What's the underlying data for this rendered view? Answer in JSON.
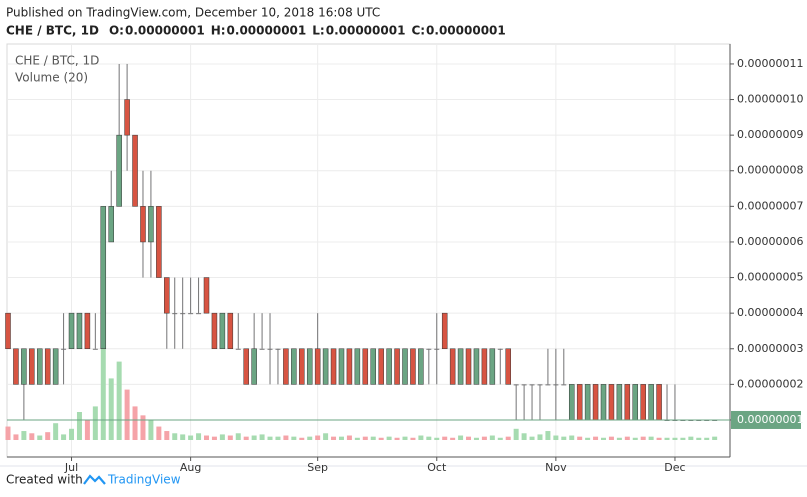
{
  "header": {
    "published": "Published on TradingView.com, December 10, 2018 16:08 UTC",
    "ohlc": [
      {
        "label": "O:",
        "value": "0.00000001"
      },
      {
        "label": "H:",
        "value": "0.00000001"
      },
      {
        "label": "L:",
        "value": "0.00000001"
      },
      {
        "label": "C:",
        "value": "0.00000001"
      }
    ]
  },
  "footer": {
    "created_with": "Created with",
    "brand": "TradingView"
  },
  "chart_data": {
    "type": "candlestick",
    "name": "CHE / BTC, 1D",
    "categories": [
      null,
      null,
      null,
      null,
      null,
      null,
      null,
      null,
      "Jul",
      null,
      null,
      null,
      null,
      null,
      null,
      null,
      null,
      null,
      null,
      null,
      null,
      null,
      null,
      "Aug",
      null,
      null,
      null,
      null,
      null,
      null,
      null,
      null,
      null,
      null,
      null,
      null,
      null,
      null,
      null,
      "Sep",
      null,
      null,
      null,
      null,
      null,
      null,
      null,
      null,
      null,
      null,
      null,
      null,
      null,
      null,
      "Oct",
      null,
      null,
      null,
      null,
      null,
      null,
      null,
      null,
      null,
      null,
      null,
      null,
      null,
      null,
      "Nov",
      null,
      null,
      null,
      null,
      null,
      null,
      null,
      null,
      null,
      null,
      null,
      null,
      null,
      null,
      "Dec",
      null,
      null,
      null,
      null,
      null
    ],
    "open": [
      4e-08,
      3e-08,
      2e-08,
      3e-08,
      2e-08,
      3e-08,
      2e-08,
      3e-08,
      3e-08,
      3e-08,
      4e-08,
      3e-08,
      3e-08,
      6e-08,
      7e-08,
      1e-07,
      9e-08,
      7e-08,
      6e-08,
      7e-08,
      5e-08,
      4e-08,
      4e-08,
      4e-08,
      4e-08,
      5e-08,
      4e-08,
      3e-08,
      4e-08,
      3e-08,
      3e-08,
      2e-08,
      3e-08,
      3e-08,
      3e-08,
      3e-08,
      2e-08,
      3e-08,
      2e-08,
      3e-08,
      2e-08,
      3e-08,
      2e-08,
      3e-08,
      2e-08,
      3e-08,
      2e-08,
      3e-08,
      2e-08,
      3e-08,
      2e-08,
      3e-08,
      2e-08,
      3e-08,
      3e-08,
      4e-08,
      3e-08,
      2e-08,
      3e-08,
      2e-08,
      3e-08,
      2e-08,
      3e-08,
      3e-08,
      2e-08,
      2e-08,
      2e-08,
      2e-08,
      2e-08,
      2e-08,
      2e-08,
      1e-08,
      2e-08,
      1e-08,
      2e-08,
      1e-08,
      2e-08,
      1e-08,
      2e-08,
      1e-08,
      2e-08,
      1e-08,
      2e-08,
      1e-08,
      1e-08,
      1e-08,
      1e-08,
      1e-08,
      1e-08,
      1e-08
    ],
    "high": [
      4e-08,
      3e-08,
      3e-08,
      3e-08,
      3e-08,
      3e-08,
      3e-08,
      4e-08,
      4e-08,
      4e-08,
      4e-08,
      4e-08,
      7e-08,
      8e-08,
      1.1e-07,
      1.1e-07,
      9e-08,
      8e-08,
      8e-08,
      7e-08,
      5e-08,
      5e-08,
      5e-08,
      5e-08,
      5e-08,
      5e-08,
      4e-08,
      4e-08,
      4e-08,
      4e-08,
      3e-08,
      4e-08,
      4e-08,
      4e-08,
      3e-08,
      3e-08,
      3e-08,
      3e-08,
      3e-08,
      4e-08,
      3e-08,
      3e-08,
      3e-08,
      3e-08,
      3e-08,
      3e-08,
      3e-08,
      3e-08,
      3e-08,
      3e-08,
      3e-08,
      3e-08,
      3e-08,
      3e-08,
      4e-08,
      4e-08,
      3e-08,
      3e-08,
      3e-08,
      3e-08,
      3e-08,
      3e-08,
      3e-08,
      3e-08,
      2e-08,
      2e-08,
      2e-08,
      2e-08,
      3e-08,
      3e-08,
      3e-08,
      2e-08,
      2e-08,
      2e-08,
      2e-08,
      2e-08,
      2e-08,
      2e-08,
      2e-08,
      2e-08,
      2e-08,
      2e-08,
      2e-08,
      2e-08,
      2e-08,
      1e-08,
      1e-08,
      1e-08,
      1e-08,
      1e-08
    ],
    "low": [
      3e-08,
      2e-08,
      1e-08,
      2e-08,
      2e-08,
      2e-08,
      2e-08,
      2e-08,
      3e-08,
      3e-08,
      3e-08,
      3e-08,
      3e-08,
      6e-08,
      7e-08,
      8e-08,
      7e-08,
      5e-08,
      5e-08,
      5e-08,
      3e-08,
      3e-08,
      3e-08,
      4e-08,
      4e-08,
      4e-08,
      3e-08,
      3e-08,
      3e-08,
      3e-08,
      2e-08,
      2e-08,
      3e-08,
      2e-08,
      2e-08,
      2e-08,
      2e-08,
      2e-08,
      2e-08,
      2e-08,
      2e-08,
      2e-08,
      2e-08,
      2e-08,
      2e-08,
      2e-08,
      2e-08,
      2e-08,
      2e-08,
      2e-08,
      2e-08,
      2e-08,
      2e-08,
      2e-08,
      2e-08,
      3e-08,
      2e-08,
      2e-08,
      2e-08,
      2e-08,
      2e-08,
      2e-08,
      2e-08,
      2e-08,
      1e-08,
      1e-08,
      1e-08,
      1e-08,
      2e-08,
      1e-08,
      2e-08,
      1e-08,
      1e-08,
      1e-08,
      1e-08,
      1e-08,
      1e-08,
      1e-08,
      1e-08,
      1e-08,
      1e-08,
      1e-08,
      1e-08,
      1e-08,
      1e-08,
      1e-08,
      1e-08,
      1e-08,
      1e-08,
      1e-08
    ],
    "close": [
      3e-08,
      2e-08,
      3e-08,
      2e-08,
      3e-08,
      2e-08,
      3e-08,
      3e-08,
      4e-08,
      4e-08,
      3e-08,
      3e-08,
      7e-08,
      7e-08,
      9e-08,
      9e-08,
      7e-08,
      6e-08,
      7e-08,
      5e-08,
      4e-08,
      4e-08,
      4e-08,
      4e-08,
      4e-08,
      4e-08,
      3e-08,
      4e-08,
      3e-08,
      3e-08,
      2e-08,
      3e-08,
      3e-08,
      3e-08,
      3e-08,
      2e-08,
      3e-08,
      2e-08,
      3e-08,
      2e-08,
      3e-08,
      2e-08,
      3e-08,
      2e-08,
      3e-08,
      2e-08,
      3e-08,
      2e-08,
      3e-08,
      2e-08,
      3e-08,
      2e-08,
      3e-08,
      3e-08,
      3e-08,
      3e-08,
      2e-08,
      3e-08,
      2e-08,
      3e-08,
      2e-08,
      3e-08,
      3e-08,
      2e-08,
      2e-08,
      2e-08,
      2e-08,
      2e-08,
      2e-08,
      2e-08,
      2e-08,
      2e-08,
      1e-08,
      2e-08,
      1e-08,
      2e-08,
      1e-08,
      2e-08,
      1e-08,
      2e-08,
      1e-08,
      2e-08,
      1e-08,
      1e-08,
      1e-08,
      1e-08,
      1e-08,
      1e-08,
      1e-08,
      1e-08
    ],
    "volume": {
      "name": "Volume (20)",
      "values": [
        12,
        5,
        8,
        6,
        4,
        7,
        15,
        5,
        10,
        25,
        18,
        30,
        100,
        55,
        70,
        45,
        30,
        22,
        18,
        12,
        8,
        6,
        5,
        4,
        6,
        4,
        3,
        5,
        4,
        6,
        3,
        4,
        5,
        3,
        3,
        4,
        3,
        2,
        3,
        4,
        6,
        3,
        3,
        4,
        2,
        3,
        3,
        2,
        3,
        2,
        3,
        2,
        4,
        3,
        2,
        3,
        2,
        4,
        3,
        2,
        3,
        4,
        2,
        3,
        10,
        6,
        3,
        5,
        8,
        4,
        3,
        4,
        3,
        2,
        3,
        2,
        3,
        2,
        3,
        2,
        3,
        3,
        2,
        2,
        2,
        2,
        3,
        2,
        2,
        3
      ]
    },
    "last_label": "0.00000001",
    "colors": {
      "up": "#6ba583",
      "down": "#d75442",
      "wick": "#737375",
      "volume_up": "#a6dbb0",
      "volume_down": "#f5a3a8",
      "last_line": "#6ba583"
    },
    "ylim": [
      -4e-10,
      1.156e-07
    ],
    "yticks": [
      {
        "value": 1e-08,
        "label": "0.00000001"
      },
      {
        "value": 2e-08,
        "label": "0.00000002"
      },
      {
        "value": 3e-08,
        "label": "0.00000003"
      },
      {
        "value": 4e-08,
        "label": "0.00000004"
      },
      {
        "value": 5e-08,
        "label": "0.00000005"
      },
      {
        "value": 6e-08,
        "label": "0.00000006"
      },
      {
        "value": 7e-08,
        "label": "0.00000007"
      },
      {
        "value": 8e-08,
        "label": "0.00000008"
      },
      {
        "value": 9e-08,
        "label": "0.00000009"
      },
      {
        "value": 1e-07,
        "label": "0.00000010"
      },
      {
        "value": 1.1e-07,
        "label": "0.00000011"
      }
    ],
    "grid": true
  }
}
